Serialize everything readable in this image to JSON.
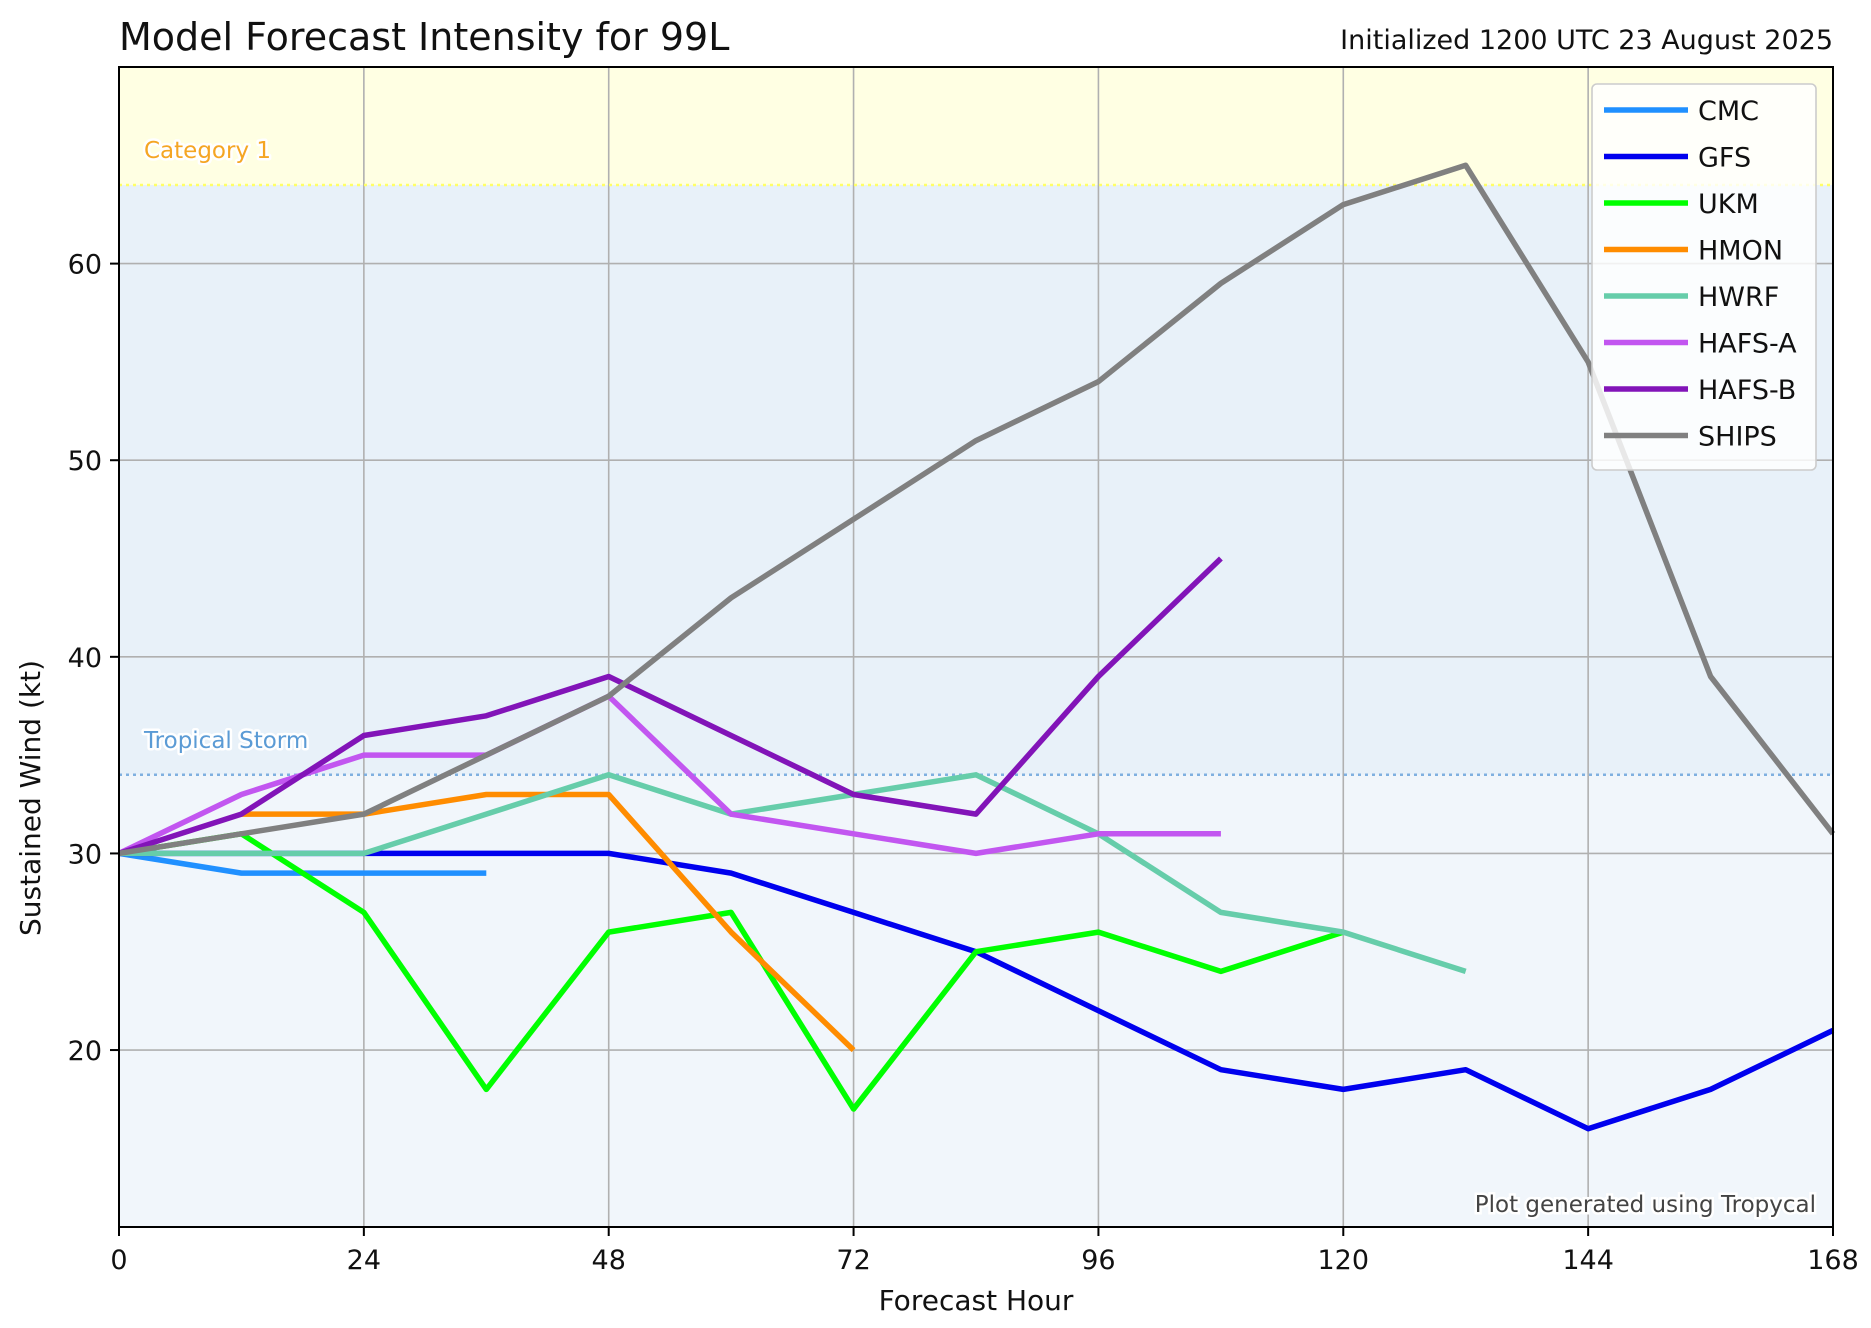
{
  "chart_data": {
    "type": "line",
    "title": "Model Forecast Intensity for 99L",
    "subtitle": "Initialized 1200 UTC 23 August 2025",
    "xlabel": "Forecast Hour",
    "ylabel": "Sustained Wind (kt)",
    "xlim": [
      0,
      168
    ],
    "ylim": [
      11,
      70
    ],
    "xticks": [
      0,
      24,
      48,
      72,
      96,
      120,
      144,
      168
    ],
    "yticks": [
      20,
      30,
      40,
      50,
      60
    ],
    "grid": true,
    "legend_position": "top-right",
    "credit": "Plot generated using Tropycal",
    "thresholds": [
      {
        "label": "Tropical Storm",
        "value": 34,
        "color": "#5b9bd5"
      },
      {
        "label": "Category 1",
        "value": 64,
        "color": "#f5a623"
      }
    ],
    "bands": [
      {
        "from": 11,
        "to": 34,
        "color": "#f1f6fb"
      },
      {
        "from": 34,
        "to": 64,
        "color": "#e8f1f9"
      },
      {
        "from": 64,
        "to": 70,
        "color": "#ffffe3"
      }
    ],
    "series": [
      {
        "name": "CMC",
        "color": "#2090ff",
        "x": [
          0,
          12,
          24,
          36
        ],
        "y": [
          30,
          29,
          29,
          29
        ]
      },
      {
        "name": "GFS",
        "color": "#0000ee",
        "x": [
          0,
          12,
          24,
          36,
          48,
          60,
          72,
          84,
          96,
          108,
          120,
          132,
          144,
          156,
          168
        ],
        "y": [
          30,
          30,
          30,
          30,
          30,
          29,
          27,
          25,
          22,
          19,
          18,
          19,
          16,
          18,
          21
        ]
      },
      {
        "name": "UKM",
        "color": "#00ff00",
        "x": [
          0,
          12,
          24,
          36,
          48,
          60,
          72,
          84,
          96,
          108,
          120
        ],
        "y": [
          30,
          31,
          27,
          18,
          26,
          27,
          17,
          25,
          26,
          24,
          26
        ]
      },
      {
        "name": "HMON",
        "color": "#ff8c00",
        "x": [
          12,
          24,
          36,
          48,
          60,
          72
        ],
        "y": [
          32,
          32,
          33,
          33,
          26,
          20
        ]
      },
      {
        "name": "HWRF",
        "color": "#66cdaa",
        "x": [
          0,
          12,
          24,
          36,
          48,
          60,
          72,
          84,
          96,
          108,
          120,
          132
        ],
        "y": [
          30,
          30,
          30,
          32,
          34,
          32,
          33,
          34,
          31,
          27,
          26,
          24
        ]
      },
      {
        "name": "HAFS-A",
        "color": "#c256f0",
        "x": [
          0,
          12,
          24,
          36,
          48,
          60,
          72,
          84,
          96,
          108
        ],
        "y": [
          30,
          33,
          35,
          35,
          38,
          32,
          31,
          30,
          31,
          31
        ]
      },
      {
        "name": "HAFS-B",
        "color": "#8214b8",
        "x": [
          0,
          12,
          24,
          36,
          48,
          60,
          72,
          84,
          96,
          108
        ],
        "y": [
          30,
          32,
          36,
          37,
          39,
          36,
          33,
          32,
          39,
          45
        ]
      },
      {
        "name": "SHIPS",
        "color": "#808080",
        "x": [
          0,
          12,
          24,
          36,
          48,
          60,
          72,
          84,
          96,
          108,
          120,
          132,
          144,
          156,
          168
        ],
        "y": [
          30,
          31,
          32,
          35,
          38,
          43,
          47,
          51,
          54,
          59,
          63,
          65,
          55,
          39,
          31
        ]
      }
    ]
  }
}
